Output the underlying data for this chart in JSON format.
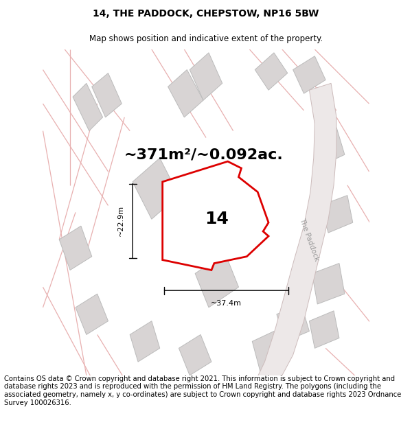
{
  "title": "14, THE PADDOCK, CHEPSTOW, NP16 5BW",
  "subtitle": "Map shows position and indicative extent of the property.",
  "area_text": "~371m²/~0.092ac.",
  "number_label": "14",
  "dim_width": "~37.4m",
  "dim_height": "~22.9m",
  "road_label": "The Paddock",
  "footer": "Contains OS data © Crown copyright and database right 2021. This information is subject to Crown copyright and database rights 2023 and is reproduced with the permission of HM Land Registry. The polygons (including the associated geometry, namely x, y co-ordinates) are subject to Crown copyright and database rights 2023 Ordnance Survey 100026316.",
  "map_bg": "#f7f3f3",
  "plot_outline_color": "#dd0000",
  "plot_fill_color": "#ffffff",
  "gray_bldg_face": "#d8d4d4",
  "gray_bldg_edge": "#bbbbbb",
  "road_poly_face": "#ede8e8",
  "road_poly_edge": "#ccbbbb",
  "pink_road_color": "#e8b0b0",
  "title_fontsize": 10,
  "subtitle_fontsize": 8.5,
  "area_fontsize": 16,
  "number_fontsize": 18,
  "dim_fontsize": 8,
  "road_label_fontsize": 7.5,
  "footer_fontsize": 7.2
}
